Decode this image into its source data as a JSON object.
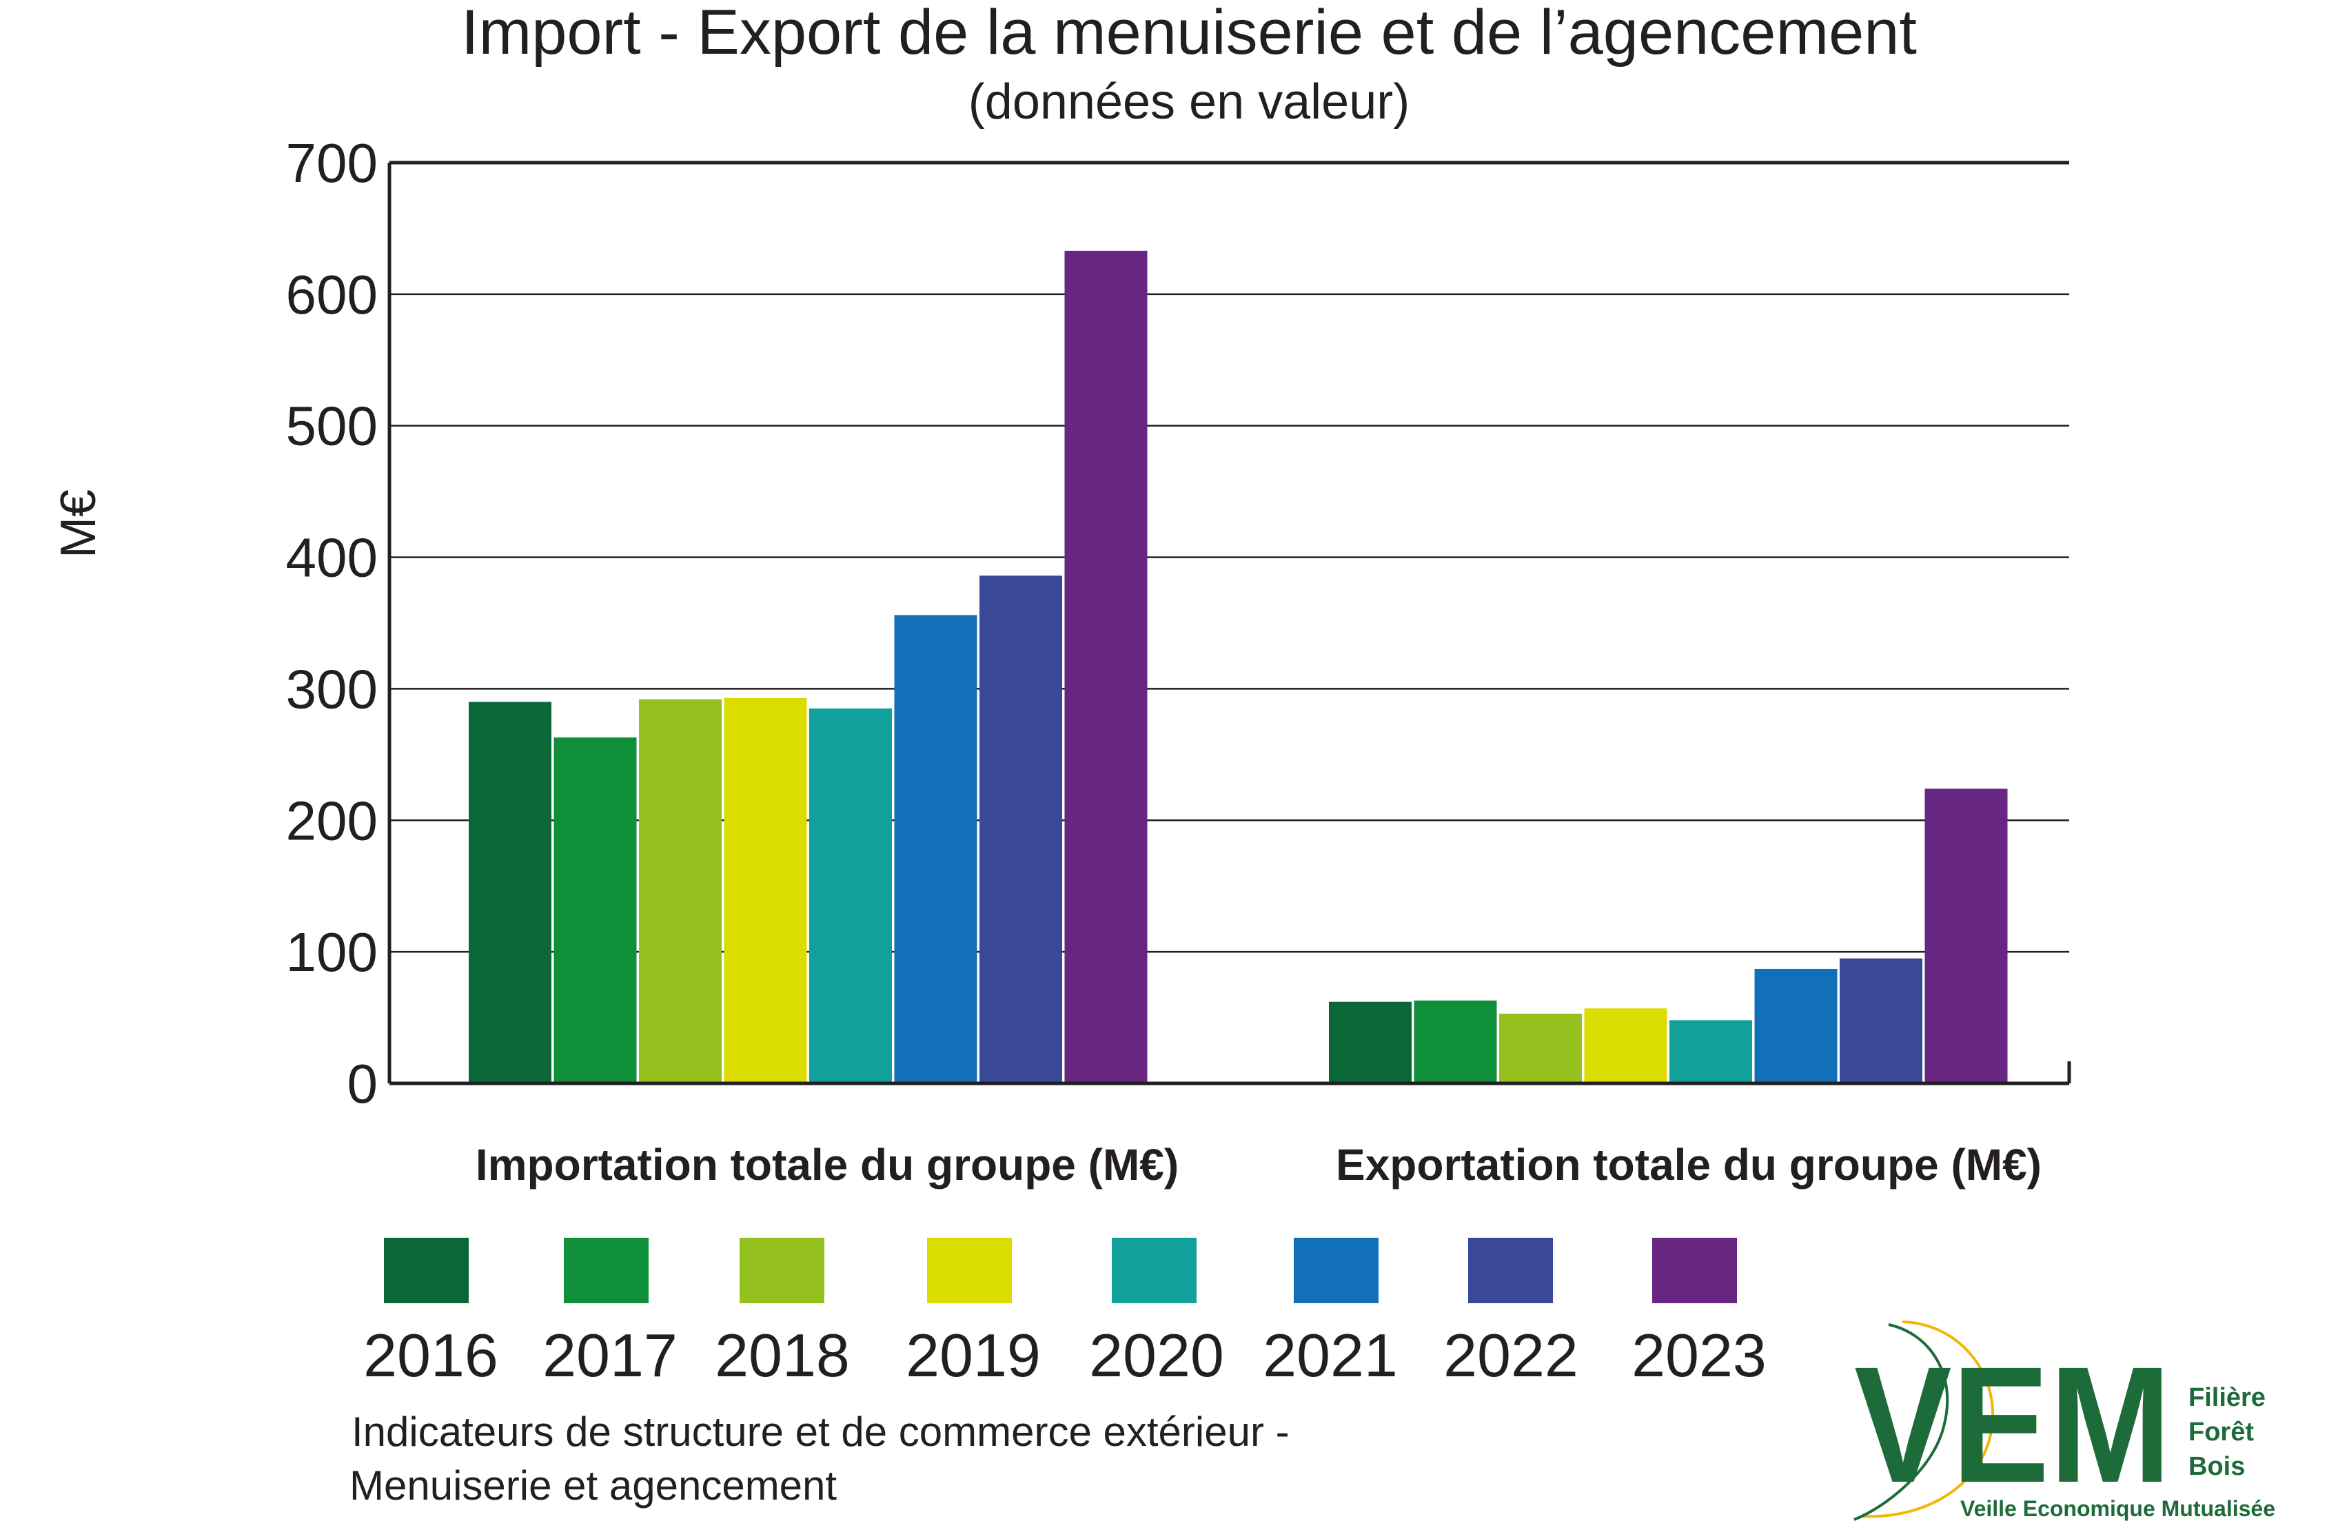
{
  "chart_data": {
    "type": "bar",
    "title": "Import - Export de la menuiserie et de l’agencement",
    "subtitle": "(données en valeur)",
    "xlabel": "",
    "ylabel": "M€",
    "ylim": [
      0,
      700
    ],
    "yticks": [
      0,
      100,
      200,
      300,
      400,
      500,
      600,
      700
    ],
    "grid": true,
    "legend_position": "bottom",
    "categories": [
      "Importation totale du groupe (M€)",
      "Exportation totale du groupe (M€)"
    ],
    "series": [
      {
        "name": "2016",
        "color": "#0a6837",
        "values": [
          290,
          62
        ]
      },
      {
        "name": "2017",
        "color": "#0e8f38",
        "values": [
          263,
          63
        ]
      },
      {
        "name": "2018",
        "color": "#95c11f",
        "values": [
          292,
          53
        ]
      },
      {
        "name": "2019",
        "color": "#dbdc00",
        "values": [
          293,
          57
        ]
      },
      {
        "name": "2020",
        "color": "#12a09b",
        "values": [
          285,
          48
        ]
      },
      {
        "name": "2021",
        "color": "#1170b8",
        "values": [
          356,
          87
        ]
      },
      {
        "name": "2022",
        "color": "#3a4898",
        "values": [
          386,
          95
        ]
      },
      {
        "name": "2023",
        "color": "#662681",
        "values": [
          633,
          224
        ]
      }
    ]
  },
  "footer": {
    "line1": "Indicateurs de structure et de commerce extérieur -",
    "line2": "Menuiserie et agencement"
  },
  "logo": {
    "letters": "VEM",
    "line1": "Filière",
    "line2": "Forêt",
    "line3": "Bois",
    "tagline": "Veille Economique Mutualisée",
    "color": "#1e6b3a",
    "accent": "#f2b705"
  }
}
